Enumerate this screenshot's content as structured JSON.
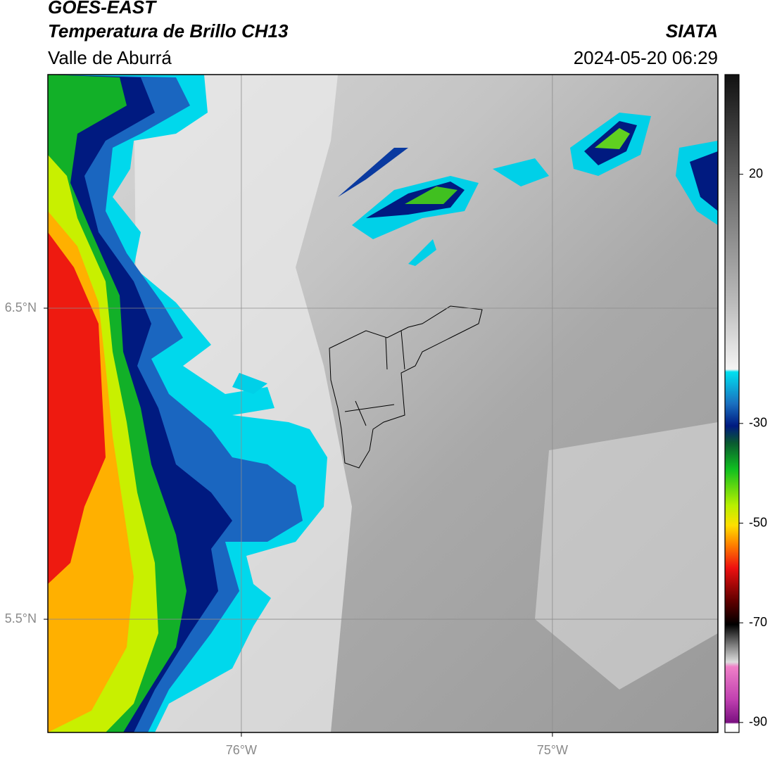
{
  "header": {
    "title": "GOES-EAST",
    "subtitle": "Temperatura de Brillo CH13",
    "region": "Valle de Aburrá",
    "source": "SIATA",
    "datetime": "2024-05-20 06:29"
  },
  "map": {
    "xlim": [
      -76.622,
      -74.468
    ],
    "ylim": [
      5.136,
      7.251
    ],
    "xticks": [
      {
        "value": -76,
        "label": "76°W"
      },
      {
        "value": -75,
        "label": "75°W"
      }
    ],
    "yticks": [
      {
        "value": 5.5,
        "label": "5.5°N"
      },
      {
        "value": 6.5,
        "label": "6.5°N"
      }
    ],
    "grid": true,
    "colorbar": {
      "lim": [
        -92,
        40
      ],
      "ticks": [
        -90,
        -70,
        -50,
        -30,
        20
      ]
    }
  }
}
